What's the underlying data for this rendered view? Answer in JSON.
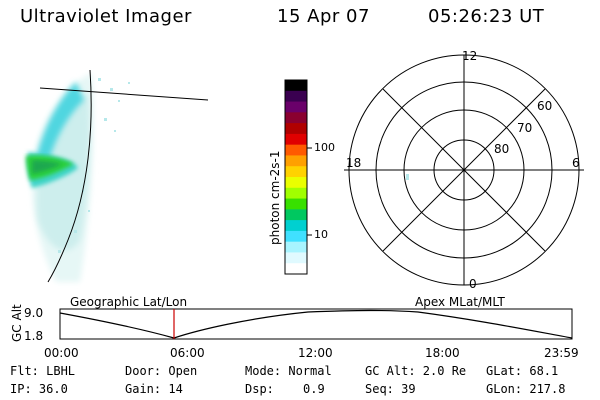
{
  "header": {
    "instrument": "Ultraviolet Imager",
    "date": "15 Apr 07",
    "time": "05:26:23 UT"
  },
  "colorbar": {
    "label": "photon cm-2s-1",
    "ticks": [
      {
        "value": "100"
      },
      {
        "value": "10"
      }
    ],
    "colors": [
      "#000000",
      "#3a0050",
      "#6a006a",
      "#8a0030",
      "#b00000",
      "#e00000",
      "#ff5a00",
      "#ffa000",
      "#ffd200",
      "#eaff00",
      "#a0ff00",
      "#38e000",
      "#00c860",
      "#00d0d0",
      "#40e0ff",
      "#a8f4ff",
      "#e0faff",
      "#ffffff"
    ]
  },
  "polar": {
    "labels": {
      "mlt_top": "12",
      "mlt_bottom": "0",
      "mlt_left": "18",
      "mlt_right": "6",
      "lat_60": "60",
      "lat_70": "70",
      "lat_80": "80"
    }
  },
  "timeline": {
    "left_title": "Geographic Lat/Lon",
    "right_title": "Apex MLat/MLT",
    "ylabel": "GC Alt",
    "y_top": "9.0",
    "y_bottom": "1.8",
    "x_ticks": [
      "00:00",
      "06:00",
      "12:00",
      "18:00",
      "23:59"
    ],
    "marker_color": "#cc0000"
  },
  "info": {
    "flt": "Flt: LBHL",
    "ip": "IP: 36.0",
    "door": "Door: Open",
    "gain": "Gain: 14",
    "mode": "Mode: Normal",
    "dsp_label": "Dsp:",
    "dsp_value": "0.9",
    "gcalt": "GC Alt: 2.0 Re",
    "seq": "Seq: 39",
    "glat": "GLat:  68.1",
    "glon": "GLon: 217.8"
  }
}
